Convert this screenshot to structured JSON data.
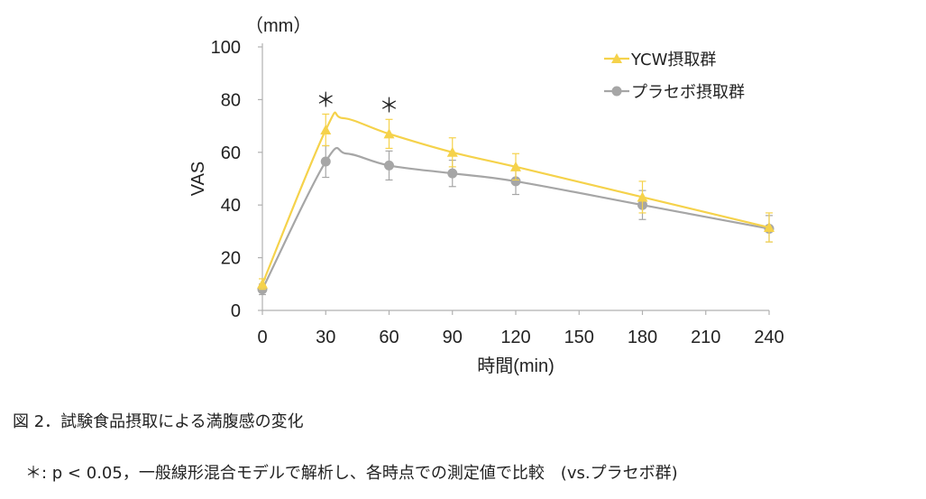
{
  "caption": "図 2．試験食品摂取による満腹感の変化",
  "footnote": "＊: p < 0.05，一般線形混合モデルで解析し、各時点での測定値で比較　(vs.プラセボ群)",
  "chart_data": {
    "type": "line",
    "ylabel": "VAS",
    "yunit": "（mm）",
    "xlabel": "時間(min)",
    "xlim": [
      0,
      240
    ],
    "ylim": [
      0,
      100
    ],
    "xticks": [
      0,
      30,
      60,
      90,
      120,
      150,
      180,
      210,
      240
    ],
    "yticks": [
      0,
      20,
      40,
      60,
      80,
      100
    ],
    "x": [
      0,
      30,
      60,
      90,
      120,
      180,
      240
    ],
    "series": [
      {
        "name": "YCW摂取群",
        "color": "#F5D24B",
        "marker": "triangle",
        "values": [
          10,
          68.5,
          67,
          60,
          54.5,
          43,
          31.5
        ],
        "errors": [
          2,
          6,
          5.5,
          5.5,
          5,
          6,
          5.5
        ],
        "peak": {
          "x": 38,
          "y": 73
        }
      },
      {
        "name": "プラセボ摂取群",
        "color": "#A6A6A6",
        "marker": "circle",
        "values": [
          8,
          56.5,
          55,
          52,
          49,
          40,
          31
        ],
        "errors": [
          2,
          6,
          5.5,
          5,
          5,
          5.5,
          5
        ],
        "peak": {
          "x": 40,
          "y": 59.5
        }
      }
    ],
    "significance": [
      {
        "x": 30,
        "label": "＊"
      },
      {
        "x": 60,
        "label": "＊"
      }
    ]
  }
}
